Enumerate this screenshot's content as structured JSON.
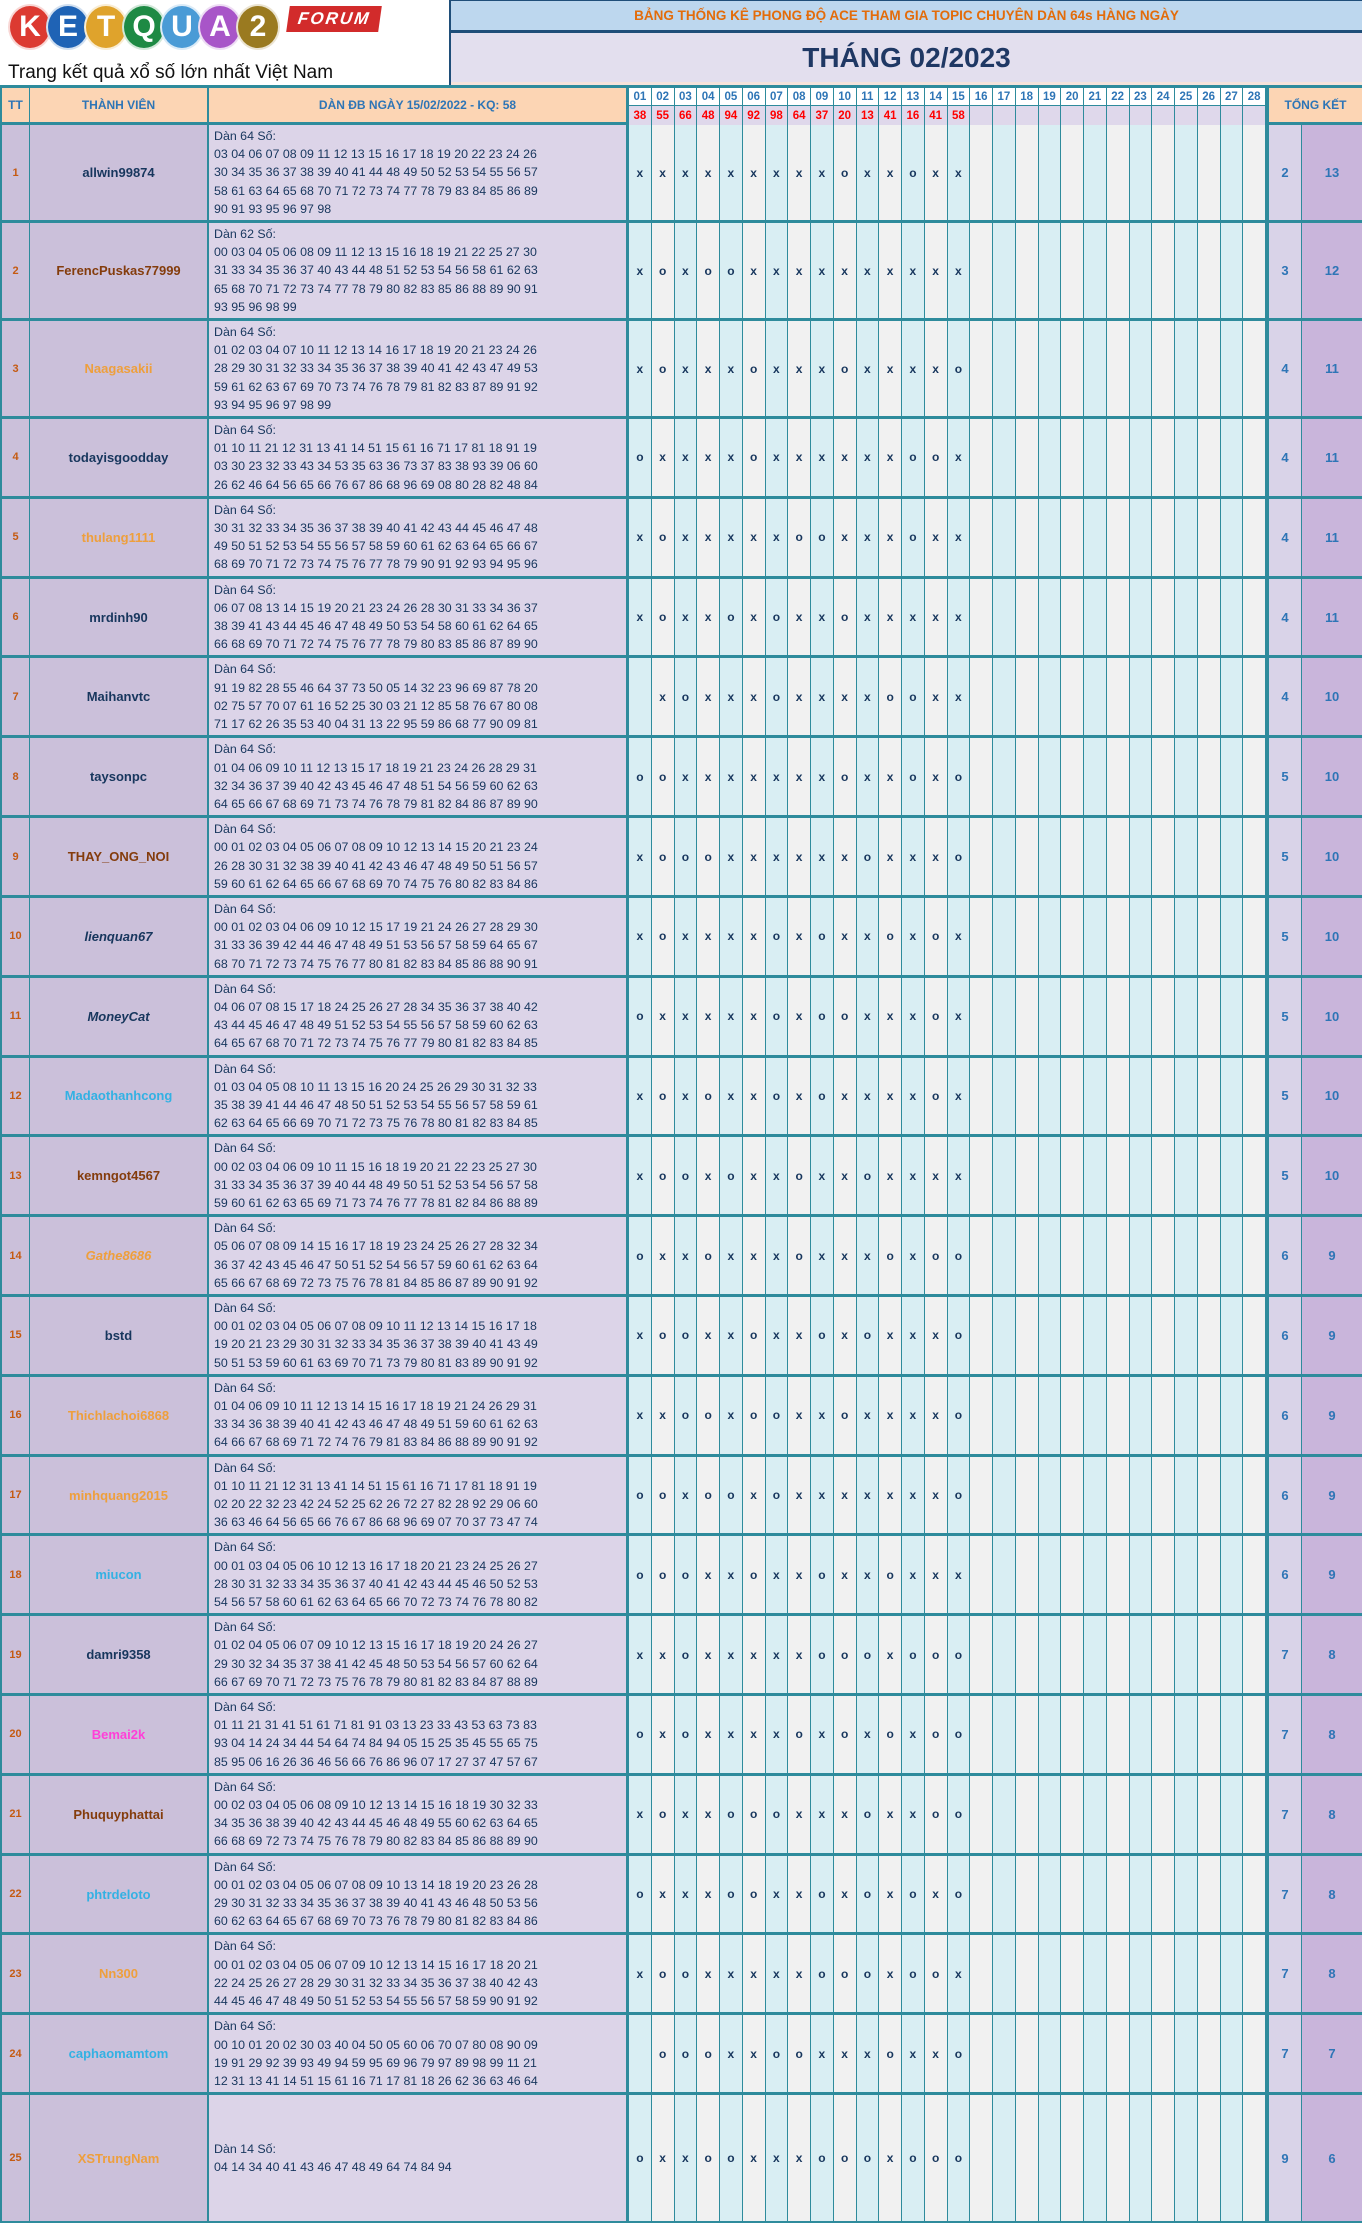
{
  "logo": {
    "letters": [
      {
        "ch": "K",
        "color": "#DC3A31"
      },
      {
        "ch": "E",
        "color": "#1F63B5"
      },
      {
        "ch": "T",
        "color": "#DFA32C"
      },
      {
        "ch": "Q",
        "color": "#1E8A44"
      },
      {
        "ch": "U",
        "color": "#4A9BD6"
      },
      {
        "ch": "A",
        "color": "#A855C8"
      },
      {
        "ch": "2",
        "color": "#9A7A20"
      }
    ],
    "forum": "FORUM",
    "tagline": "Trang kết quả xổ số lớn nhất Việt Nam"
  },
  "header": {
    "title": "BẢNG THỐNG KÊ PHONG ĐỘ ACE THAM GIA TOPIC CHUYÊN DÀN 64s HÀNG NGÀY",
    "month": "THÁNG 02/2023"
  },
  "colors": {
    "teal_border": "#2E8B9C",
    "header_peach": "#FCD5B4",
    "title_bar_bg": "#BDD7EE",
    "title_orange": "#E36C0A",
    "month_navy": "#1F3864",
    "result_red": "#FF0000",
    "text_navy": "#17365D",
    "column_blue": "#2E75B6",
    "mark_cyan": "#D9EEF3",
    "mark_white": "#F1F1F1",
    "total_miss_bg": "#D9D3E8",
    "total_hit_bg": "#C9B5DB",
    "page_bg": "#F6E3DB"
  },
  "table": {
    "col_tt": "TT",
    "col_member": "THÀNH VIÊN",
    "col_dan": "DÀN ĐB NGÀY 15/02/2022 - KQ: 58",
    "col_total": "TỔNG KẾT",
    "days": [
      "01",
      "02",
      "03",
      "04",
      "05",
      "06",
      "07",
      "08",
      "09",
      "10",
      "11",
      "12",
      "13",
      "14",
      "15",
      "16",
      "17",
      "18",
      "19",
      "20",
      "21",
      "22",
      "23",
      "24",
      "25",
      "26",
      "27",
      "28"
    ],
    "results": [
      "38",
      "55",
      "66",
      "48",
      "94",
      "92",
      "98",
      "64",
      "37",
      "20",
      "13",
      "41",
      "16",
      "41",
      "58"
    ],
    "rows": [
      {
        "tt": "1",
        "name": "allwin99874",
        "color": "#17365D",
        "italic": false,
        "dan_label": "Dàn 64 Số:",
        "lines": [
          "03 04 06 07 08 09 11 12 13 15 16 17 18 19 20 22 23 24 26",
          "30 34 35 36 37 38 39 40 41 44 48 49 50 52 53 54 55 56 57",
          "58 61 63 64 65 68 70 71 72 73 74 77 78 79 83 84 85 86 89",
          "90 91 93 95 96 97 98"
        ],
        "marks": [
          "x",
          "x",
          "x",
          "x",
          "x",
          "x",
          "x",
          "x",
          "x",
          "o",
          "x",
          "x",
          "o",
          "x",
          "x"
        ],
        "total_o": "2",
        "total_x": "13"
      },
      {
        "tt": "2",
        "name": "FerencPuskas77999",
        "color": "#843C0C",
        "italic": false,
        "dan_label": "Dàn 62 Số:",
        "lines": [
          "00 03 04 05 06 08 09 11 12 13 15 16 18 19 21 22 25 27 30",
          "31 33 34 35 36 37 40 43 44 48 51 52 53 54 56 58 61 62 63",
          "65 68 70 71 72 73 74 77 78 79 80 82 83 85 86 88 89 90 91",
          "93 95 96 98 99"
        ],
        "marks": [
          "x",
          "o",
          "x",
          "o",
          "o",
          "x",
          "x",
          "x",
          "x",
          "x",
          "x",
          "x",
          "x",
          "x",
          "x"
        ],
        "total_o": "3",
        "total_x": "12"
      },
      {
        "tt": "3",
        "name": "Naagasakii",
        "color": "#EE9F3C",
        "italic": false,
        "dan_label": "Dàn 64 Số:",
        "lines": [
          "01 02 03 04 07 10 11 12 13 14 16 17 18 19 20 21 23 24 26",
          "28 29 30 31 32 33 34 35 36 37 38 39 40 41 42 43 47 49 53",
          "59 61 62 63 67 69 70 73 74 76 78 79 81 82 83 87 89 91 92",
          "93 94 95 96 97 98 99"
        ],
        "marks": [
          "x",
          "o",
          "x",
          "x",
          "x",
          "o",
          "x",
          "x",
          "x",
          "o",
          "x",
          "x",
          "x",
          "x",
          "o"
        ],
        "total_o": "4",
        "total_x": "11"
      },
      {
        "tt": "4",
        "name": "todayisgoodday",
        "color": "#17365D",
        "italic": false,
        "dan_label": "Dàn 64 Số:",
        "lines": [
          "01 10 11 21 12 31 13 41 14 51 15 61 16 71 17 81 18 91 19",
          "03 30 23 32 33 43 34 53 35 63 36 73 37 83 38 93 39 06 60",
          "26 62 46 64 56 65 66 76 67 86 68 96 69 08 80 28 82 48 84"
        ],
        "marks": [
          "o",
          "x",
          "x",
          "x",
          "x",
          "o",
          "x",
          "x",
          "x",
          "x",
          "x",
          "x",
          "o",
          "o",
          "x"
        ],
        "total_o": "4",
        "total_x": "11"
      },
      {
        "tt": "5",
        "name": "thulang1111",
        "color": "#EE9F3C",
        "italic": false,
        "dan_label": "Dàn 64 Số:",
        "lines": [
          "30 31 32 33 34 35 36 37 38 39 40 41 42 43 44 45 46 47 48",
          "49 50 51 52 53 54 55 56 57 58 59 60 61 62 63 64 65 66 67",
          "68 69 70 71 72 73 74 75 76 77 78 79 90 91 92 93 94 95 96"
        ],
        "marks": [
          "x",
          "o",
          "x",
          "x",
          "x",
          "x",
          "x",
          "o",
          "o",
          "x",
          "x",
          "x",
          "o",
          "x",
          "x"
        ],
        "total_o": "4",
        "total_x": "11"
      },
      {
        "tt": "6",
        "name": "mrdinh90",
        "color": "#17365D",
        "italic": false,
        "dan_label": "Dàn 64 Số:",
        "lines": [
          "06 07 08 13 14 15 19 20 21 23 24 26 28 30 31 33 34 36 37",
          "38 39 41 43 44 45 46 47 48 49 50 53 54 58 60 61 62 64 65",
          "66 68 69 70 71 72 74 75 76 77 78 79 80 83 85 86 87 89 90"
        ],
        "marks": [
          "x",
          "o",
          "x",
          "x",
          "o",
          "x",
          "o",
          "x",
          "x",
          "o",
          "x",
          "x",
          "x",
          "x",
          "x"
        ],
        "total_o": "4",
        "total_x": "11"
      },
      {
        "tt": "7",
        "name": "Maihanvtc",
        "color": "#17365D",
        "italic": false,
        "dan_label": "Dàn 64 Số:",
        "lines": [
          "91 19 82 28 55 46 64 37 73 50 05 14 32 23 96 69 87 78 20",
          "02 75 57 70 07 61 16 52 25 30 03 21 12 85 58 76 67 80 08",
          "71 17 62 26 35 53 40 04 31 13 22 95 59 86 68 77 90 09 81"
        ],
        "marks": [
          "",
          "x",
          "o",
          "x",
          "x",
          "x",
          "o",
          "x",
          "x",
          "x",
          "x",
          "o",
          "o",
          "x",
          "x"
        ],
        "total_o": "4",
        "total_x": "10"
      },
      {
        "tt": "8",
        "name": "taysonpc",
        "color": "#17365D",
        "italic": false,
        "dan_label": "Dàn 64 Số:",
        "lines": [
          "01 04 06 09 10 11 12 13 15 17 18 19 21 23 24 26 28 29 31",
          "32 34 36 37 39 40 42 43 45 46 47 48 51 54 56 59 60 62 63",
          "64 65 66 67 68 69 71 73 74 76 78 79 81 82 84 86 87 89 90"
        ],
        "marks": [
          "o",
          "o",
          "x",
          "x",
          "x",
          "x",
          "x",
          "x",
          "x",
          "o",
          "x",
          "x",
          "o",
          "x",
          "o"
        ],
        "total_o": "5",
        "total_x": "10"
      },
      {
        "tt": "9",
        "name": "THAY_ONG_NOI",
        "color": "#843C0C",
        "italic": false,
        "dan_label": "Dàn 64 Số:",
        "lines": [
          "00 01 02 03 04 05 06 07 08 09 10 12 13 14 15 20 21 23 24",
          "26 28 30 31 32 38 39 40 41 42 43 46 47 48 49 50 51 56 57",
          "59 60 61 62 64 65 66 67 68 69 70 74 75 76 80 82 83 84 86"
        ],
        "marks": [
          "x",
          "o",
          "o",
          "o",
          "x",
          "x",
          "x",
          "x",
          "x",
          "x",
          "o",
          "x",
          "x",
          "x",
          "o"
        ],
        "total_o": "5",
        "total_x": "10"
      },
      {
        "tt": "10",
        "name": "lienquan67",
        "color": "#17365D",
        "italic": true,
        "dan_label": "Dàn 64 Số:",
        "lines": [
          "00 01 02 03 04 06 09 10 12 15 17 19 21 24 26 27 28 29 30",
          "31 33 36 39 42 44 46 47 48 49 51 53 56 57 58 59 64 65 67",
          "68 70 71 72 73 74 75 76 77 80 81 82 83 84 85 86 88 90 91"
        ],
        "marks": [
          "x",
          "o",
          "x",
          "x",
          "x",
          "x",
          "o",
          "x",
          "o",
          "x",
          "x",
          "o",
          "x",
          "o",
          "x"
        ],
        "total_o": "5",
        "total_x": "10"
      },
      {
        "tt": "11",
        "name": "MoneyCat",
        "color": "#17365D",
        "italic": true,
        "dan_label": "Dàn 64 Số:",
        "lines": [
          "04 06 07 08 15 17 18 24 25 26 27 28 34 35 36 37 38 40 42",
          "43 44 45 46 47 48 49 51 52 53 54 55 56 57 58 59 60 62 63",
          "64 65 67 68 70 71 72 73 74 75 76 77 79 80 81 82 83 84 85"
        ],
        "marks": [
          "o",
          "x",
          "x",
          "x",
          "x",
          "x",
          "o",
          "x",
          "o",
          "o",
          "x",
          "x",
          "x",
          "o",
          "x"
        ],
        "total_o": "5",
        "total_x": "10"
      },
      {
        "tt": "12",
        "name": "Madaothanhcong",
        "color": "#33B1E3",
        "italic": false,
        "dan_label": "Dàn 64 Số:",
        "lines": [
          "01 03 04 05 08 10 11 13 15 16 20 24 25 26 29 30 31 32 33",
          "35 38 39 41 44 46 47 48 50 51 52 53 54 55 56 57 58 59 61",
          "62 63 64 65 66 69 70 71 72 73 75 76 78 80 81 82 83 84 85"
        ],
        "marks": [
          "x",
          "o",
          "x",
          "o",
          "x",
          "x",
          "o",
          "x",
          "o",
          "x",
          "x",
          "x",
          "x",
          "o",
          "x"
        ],
        "total_o": "5",
        "total_x": "10"
      },
      {
        "tt": "13",
        "name": "kemngot4567",
        "color": "#843C0C",
        "italic": false,
        "dan_label": "Dàn 64 Số:",
        "lines": [
          "00 02 03 04 06 09 10 11 15 16 18 19 20 21 22 23 25 27 30",
          "31 33 34 35 36 37 39 40 44 48 49 50 51 52 53 54 56 57 58",
          "59 60 61 62 63 65 69 71 73 74 76 77 78 81 82 84 86 88 89"
        ],
        "marks": [
          "x",
          "o",
          "o",
          "x",
          "o",
          "x",
          "x",
          "o",
          "x",
          "x",
          "o",
          "x",
          "x",
          "x",
          "x"
        ],
        "total_o": "5",
        "total_x": "10"
      },
      {
        "tt": "14",
        "name": "Gathe8686",
        "color": "#EE9F3C",
        "italic": true,
        "dan_label": "Dàn 64 Số:",
        "lines": [
          "05 06 07 08 09 14 15 16 17 18 19 23 24 25 26 27 28 32 34",
          "36 37 42 43 45 46 47 50 51 52 54 56 57 59 60 61 62 63 64",
          "65 66 67 68 69 72 73 75 76 78 81 84 85 86 87 89 90 91 92"
        ],
        "marks": [
          "o",
          "x",
          "x",
          "o",
          "x",
          "x",
          "x",
          "o",
          "x",
          "x",
          "x",
          "o",
          "x",
          "o",
          "o"
        ],
        "total_o": "6",
        "total_x": "9"
      },
      {
        "tt": "15",
        "name": "bstd",
        "color": "#17365D",
        "italic": false,
        "dan_label": "Dàn 64 Số:",
        "lines": [
          "00 01 02 03 04 05 06 07 08 09 10 11 12 13 14 15 16 17 18",
          "19 20 21 23 29 30 31 32 33 34 35 36 37 38 39 40 41 43 49",
          "50 51 53 59 60 61 63 69 70 71 73 79 80 81 83 89 90 91 92"
        ],
        "marks": [
          "x",
          "o",
          "o",
          "x",
          "x",
          "o",
          "x",
          "x",
          "o",
          "x",
          "o",
          "x",
          "x",
          "x",
          "o"
        ],
        "total_o": "6",
        "total_x": "9"
      },
      {
        "tt": "16",
        "name": "Thichlachoi6868",
        "color": "#EE9F3C",
        "italic": false,
        "dan_label": "Dàn 64 Số:",
        "lines": [
          "01 04 06 09 10 11 12 13 14 15 16 17 18 19 21 24 26 29 31",
          "33 34 36 38 39 40 41 42 43 46 47 48 49 51 59 60 61 62 63",
          "64 66 67 68 69 71 72 74 76 79 81 83 84 86 88 89 90 91 92"
        ],
        "marks": [
          "x",
          "x",
          "o",
          "o",
          "x",
          "o",
          "o",
          "x",
          "x",
          "o",
          "x",
          "x",
          "x",
          "x",
          "o"
        ],
        "total_o": "6",
        "total_x": "9"
      },
      {
        "tt": "17",
        "name": "minhquang2015",
        "color": "#EE9F3C",
        "italic": false,
        "dan_label": "Dàn 64 Số:",
        "lines": [
          "01 10 11 21 12 31 13 41 14 51 15 61 16 71 17 81 18 91 19",
          "02 20 22 32 23 42 24 52 25 62 26 72 27 82 28 92 29 06 60",
          "36 63 46 64 56 65 66 76 67 86 68 96 69 07 70 37 73 47 74"
        ],
        "marks": [
          "o",
          "o",
          "x",
          "o",
          "o",
          "x",
          "o",
          "x",
          "x",
          "x",
          "x",
          "x",
          "x",
          "x",
          "o"
        ],
        "total_o": "6",
        "total_x": "9"
      },
      {
        "tt": "18",
        "name": "miucon",
        "color": "#33B1E3",
        "italic": false,
        "dan_label": "Dàn 64 Số:",
        "lines": [
          "00 01 03 04 05 06 10 12 13 16 17 18 20 21 23 24 25 26 27",
          "28 30 31 32 33 34 35 36 37 40 41 42 43 44 45 46 50 52 53",
          "54 56 57 58 60 61 62 63 64 65 66 70 72 73 74 76 78 80 82"
        ],
        "marks": [
          "o",
          "o",
          "o",
          "x",
          "x",
          "o",
          "x",
          "x",
          "o",
          "x",
          "x",
          "o",
          "x",
          "x",
          "x"
        ],
        "total_o": "6",
        "total_x": "9"
      },
      {
        "tt": "19",
        "name": "damri9358",
        "color": "#17365D",
        "italic": false,
        "dan_label": "Dàn 64 Số:",
        "lines": [
          "01 02 04 05 06 07 09 10 12 13 15 16 17 18 19 20 24 26 27",
          "29 30 32 34 35 37 38 41 42 45 48 50 53 54 56 57 60 62 64",
          "66 67 69 70 71 72 73 75 76 78 79 80 81 82 83 84 87 88 89"
        ],
        "marks": [
          "x",
          "x",
          "o",
          "x",
          "x",
          "x",
          "x",
          "x",
          "o",
          "o",
          "o",
          "x",
          "o",
          "o",
          "o"
        ],
        "total_o": "7",
        "total_x": "8"
      },
      {
        "tt": "20",
        "name": "Bemai2k",
        "color": "#FF3FD8",
        "italic": false,
        "dan_label": "Dàn 64 Số:",
        "lines": [
          "01 11 21 31 41 51 61 71 81 91 03 13 23 33 43 53 63 73 83",
          "93 04 14 24 34 44 54 64 74 84 94 05 15 25 35 45 55 65 75",
          "85 95 06 16 26 36 46 56 66 76 86 96 07 17 27 37 47 57 67"
        ],
        "marks": [
          "o",
          "x",
          "o",
          "x",
          "x",
          "x",
          "x",
          "o",
          "x",
          "o",
          "x",
          "o",
          "x",
          "o",
          "o"
        ],
        "total_o": "7",
        "total_x": "8"
      },
      {
        "tt": "21",
        "name": "Phuquyphattai",
        "color": "#843C0C",
        "italic": false,
        "dan_label": "Dàn 64 Số:",
        "lines": [
          "00 02 03 04 05 06 08 09 10 12 13 14 15 16 18 19 30 32 33",
          "34 35 36 38 39 40 42 43 44 45 46 48 49 55 60 62 63 64 65",
          "66 68 69 72 73 74 75 76 78 79 80 82 83 84 85 86 88 89 90"
        ],
        "marks": [
          "x",
          "o",
          "x",
          "x",
          "o",
          "o",
          "o",
          "x",
          "x",
          "x",
          "o",
          "x",
          "x",
          "o",
          "o"
        ],
        "total_o": "7",
        "total_x": "8"
      },
      {
        "tt": "22",
        "name": "phtrdeloto",
        "color": "#33B1E3",
        "italic": false,
        "dan_label": "Dàn 64 Số:",
        "lines": [
          "00 01 02 03 04 05 06 07 08 09 10 13 14 18 19 20 23 26 28",
          "29 30 31 32 33 34 35 36 37 38 39 40 41 43 46 48 50 53 56",
          "60 62 63 64 65 67 68 69 70 73 76 78 79 80 81 82 83 84 86"
        ],
        "marks": [
          "o",
          "x",
          "x",
          "x",
          "o",
          "o",
          "x",
          "x",
          "o",
          "x",
          "o",
          "x",
          "o",
          "x",
          "o"
        ],
        "total_o": "7",
        "total_x": "8"
      },
      {
        "tt": "23",
        "name": "Nn300",
        "color": "#EE9F3C",
        "italic": false,
        "dan_label": "Dàn 64 Số:",
        "lines": [
          "00 01 02 03 04 05 06 07 09 10 12 13 14 15 16 17 18 20 21",
          "22 24 25 26 27 28 29 30 31 32 33 34 35 36 37 38 40 42 43",
          "44 45 46 47 48 49 50 51 52 53 54 55 56 57 58 59 90 91 92"
        ],
        "marks": [
          "x",
          "o",
          "o",
          "x",
          "x",
          "x",
          "x",
          "x",
          "o",
          "o",
          "o",
          "x",
          "o",
          "o",
          "x"
        ],
        "total_o": "7",
        "total_x": "8"
      },
      {
        "tt": "24",
        "name": "caphaomamtom",
        "color": "#33B1E3",
        "italic": false,
        "dan_label": "Dàn 64 Số:",
        "lines": [
          "00 10 01 20 02 30 03 40 04 50 05 60 06 70 07 80 08 90 09",
          "19 91 29 92 39 93 49 94 59 95 69 96 79 97 89 98 99 11 21",
          "12 31 13 41 14 51 15 61 16 71 17 81 18 26 62 36 63 46 64"
        ],
        "marks": [
          "",
          "o",
          "o",
          "o",
          "x",
          "x",
          "o",
          "o",
          "x",
          "x",
          "x",
          "o",
          "x",
          "x",
          "o"
        ],
        "total_o": "7",
        "total_x": "7"
      },
      {
        "tt": "25",
        "name": "XSTrungNam",
        "color": "#EE9F3C",
        "italic": false,
        "dan_label": "Dàn 14 Số:",
        "lines": [
          "04 14 34 40 41 43 46 47 48 49 64 74 84 94"
        ],
        "marks": [
          "o",
          "x",
          "x",
          "o",
          "o",
          "x",
          "x",
          "x",
          "o",
          "o",
          "o",
          "x",
          "o",
          "o",
          "o"
        ],
        "total_o": "9",
        "total_x": "6"
      }
    ]
  }
}
